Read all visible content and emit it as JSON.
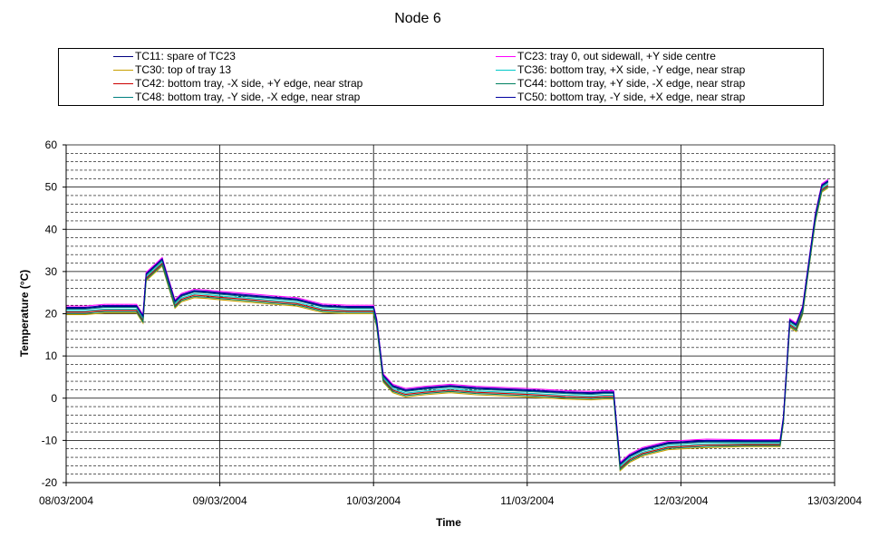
{
  "chart_data": {
    "type": "line",
    "title": "Node 6",
    "xlabel": "Time",
    "ylabel": "Temperature (°C)",
    "ylim": [
      -20,
      60
    ],
    "y_ticks": [
      -20,
      -10,
      0,
      10,
      20,
      30,
      40,
      50,
      60
    ],
    "x_range": [
      "08/03/2004",
      "13/03/2004"
    ],
    "x_tick_labels": [
      "08/03/2004",
      "09/03/2004",
      "10/03/2004",
      "11/03/2004",
      "12/03/2004",
      "13/03/2004"
    ],
    "grid": true,
    "legend_position": "top",
    "base_profile": {
      "x": [
        "08/03/2004 00:00",
        "08/03/2004 03:00",
        "08/03/2004 06:00",
        "08/03/2004 09:00",
        "08/03/2004 11:00",
        "08/03/2004 12:00",
        "08/03/2004 12:30",
        "08/03/2004 15:00",
        "08/03/2004 17:00",
        "08/03/2004 18:00",
        "08/03/2004 20:00",
        "08/03/2004 22:00",
        "09/03/2004 00:00",
        "09/03/2004 04:00",
        "09/03/2004 08:00",
        "09/03/2004 12:00",
        "09/03/2004 16:00",
        "09/03/2004 20:00",
        "10/03/2004 00:00",
        "10/03/2004 00:30",
        "10/03/2004 01:30",
        "10/03/2004 03:00",
        "10/03/2004 05:00",
        "10/03/2004 08:00",
        "10/03/2004 12:00",
        "10/03/2004 16:00",
        "11/03/2004 00:00",
        "11/03/2004 06:00",
        "11/03/2004 10:00",
        "11/03/2004 12:00",
        "11/03/2004 13:30",
        "11/03/2004 14:30",
        "11/03/2004 16:00",
        "11/03/2004 18:00",
        "11/03/2004 22:00",
        "12/03/2004 04:00",
        "12/03/2004 10:00",
        "12/03/2004 14:00",
        "12/03/2004 15:30",
        "12/03/2004 16:00",
        "12/03/2004 17:00",
        "12/03/2004 18:00",
        "12/03/2004 19:00",
        "12/03/2004 20:00",
        "12/03/2004 21:00",
        "12/03/2004 22:00",
        "12/03/2004 23:00"
      ],
      "y": [
        21,
        21,
        21.4,
        21.4,
        21.4,
        19,
        29,
        32.5,
        22.5,
        24,
        25,
        24.8,
        24.5,
        24,
        23.5,
        23,
        21.5,
        21.2,
        21.2,
        18,
        5,
        2.5,
        1.5,
        2,
        2.5,
        2,
        1.5,
        1,
        0.8,
        1,
        1,
        -16,
        -14,
        -12.5,
        -11,
        -10.5,
        -10.5,
        -10.5,
        -10.5,
        -5,
        18,
        17,
        21,
        32,
        43,
        50,
        51
      ]
    },
    "series": [
      {
        "name": "TC11: spare of TC23",
        "color": "#000080",
        "offset": 0.3
      },
      {
        "name": "TC23: tray 0, out sidewall, +Y side centre",
        "color": "#ff00ff",
        "offset": 0.8
      },
      {
        "name": "TC30: top of tray 13",
        "color": "#c8a000",
        "offset": -1.2
      },
      {
        "name": "TC36: bottom tray, +X side, -Y edge, near strap",
        "color": "#00c8c8",
        "offset": -0.3
      },
      {
        "name": "TC42: bottom tray, -X side, +Y edge, near strap",
        "color": "#cc0000",
        "offset": -0.6
      },
      {
        "name": "TC44: bottom tray, +Y side, -X edge, near strap",
        "color": "#008060",
        "offset": -0.9
      },
      {
        "name": "TC48: bottom tray, -Y side, -X edge, near strap",
        "color": "#008080",
        "offset": 0.1
      },
      {
        "name": "TC50: bottom tray, -Y side, +X edge, near strap",
        "color": "#0000a0",
        "offset": 0.5
      }
    ]
  }
}
